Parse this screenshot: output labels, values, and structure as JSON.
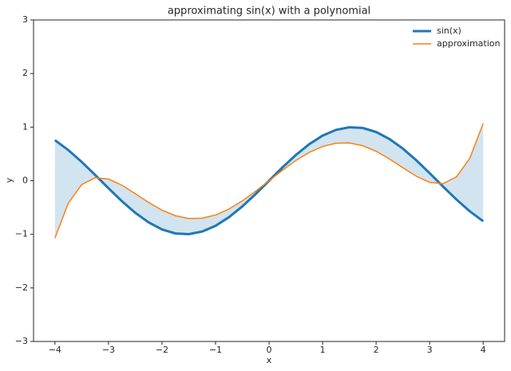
{
  "chart_data": {
    "type": "line",
    "title": "approximating sin(x) with a polynomial",
    "x_label": "x",
    "y_label": "y",
    "x": [
      -4,
      -3.75,
      -3.5,
      -3.25,
      -3,
      -2.75,
      -2.5,
      -2.25,
      -2,
      -1.75,
      -1.5,
      -1.25,
      -1,
      -0.75,
      -0.5,
      -0.25,
      0,
      0.25,
      0.5,
      0.75,
      1,
      1.25,
      1.5,
      1.75,
      2,
      2.25,
      2.5,
      2.75,
      3,
      3.25,
      3.5,
      3.75,
      4
    ],
    "series": [
      {
        "name": "sin(x)",
        "color": "#1f77b4",
        "width": 3,
        "values": [
          0.7568,
          0.5716,
          0.3508,
          0.1082,
          -0.1411,
          -0.3817,
          -0.5985,
          -0.7781,
          -0.9093,
          -0.984,
          -0.9975,
          -0.949,
          -0.8415,
          -0.6816,
          -0.4794,
          -0.2474,
          0,
          0.2474,
          0.4794,
          0.6816,
          0.8415,
          0.949,
          0.9975,
          0.984,
          0.9093,
          0.7781,
          0.5985,
          0.3817,
          0.1411,
          -0.1082,
          -0.3508,
          -0.5716,
          -0.7568
        ]
      },
      {
        "name": "approximation",
        "color": "#ff7f0e",
        "width": 1.5,
        "values": [
          -1.0698,
          -0.418,
          -0.0711,
          0.0549,
          0.0313,
          -0.0834,
          -0.2415,
          -0.4062,
          -0.5498,
          -0.6532,
          -0.705,
          -0.7002,
          -0.6396,
          -0.5287,
          -0.3767,
          -0.1958,
          0,
          0.1958,
          0.3767,
          0.5287,
          0.6396,
          0.7002,
          0.705,
          0.6532,
          0.5498,
          0.4062,
          0.2415,
          0.0834,
          -0.0313,
          -0.0549,
          0.0711,
          0.418,
          1.0698
        ]
      }
    ],
    "fill_between": {
      "color": "#1f77b4",
      "opacity": 0.2
    },
    "xlim": [
      -4.4,
      4.4
    ],
    "ylim": [
      -3,
      3
    ],
    "xticks": [
      {
        "value": -4,
        "label": "−4"
      },
      {
        "value": -3,
        "label": "−3"
      },
      {
        "value": -2,
        "label": "−2"
      },
      {
        "value": -1,
        "label": "−1"
      },
      0,
      1,
      2,
      3,
      4
    ],
    "yticks": [
      {
        "value": -3,
        "label": "−3"
      },
      {
        "value": -2,
        "label": "−2"
      },
      {
        "value": -1,
        "label": "−1"
      },
      0,
      1,
      2,
      3
    ],
    "grid": false,
    "legend": "upper right"
  }
}
